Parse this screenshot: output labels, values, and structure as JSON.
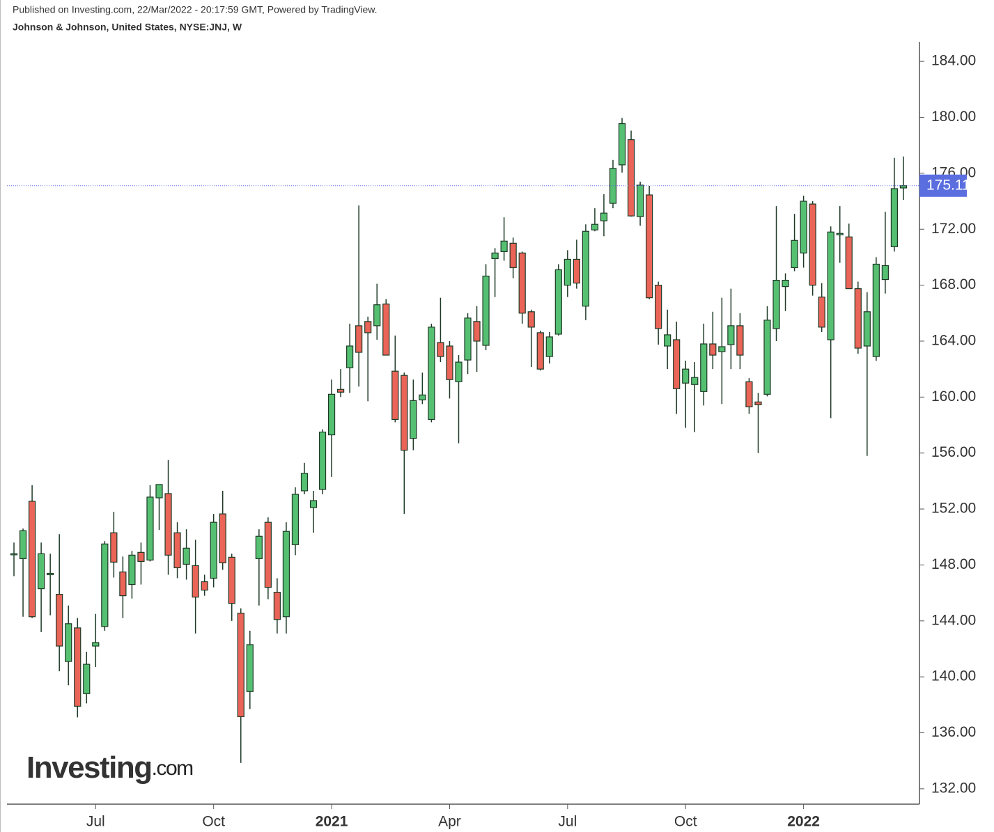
{
  "header": {
    "published": "Published on Investing.com, 22/Mar/2022 - 20:17:59 GMT, Powered by TradingView.",
    "symbol": "Johnson & Johnson, United States, NYSE:JNJ, W"
  },
  "logo": {
    "name": "Investing",
    "suffix": ".com"
  },
  "chart_data": {
    "type": "candlestick",
    "up_color": "#56c072",
    "down_color": "#ea6458",
    "edge_color": "#1d3a26",
    "open": [
      148.8,
      148.45,
      152.55,
      146.3,
      147.3,
      145.9,
      141.1,
      143.5,
      138.8,
      142.2,
      143.6,
      150.3,
      147.5,
      146.6,
      148.9,
      148.35,
      152.8,
      153.1,
      150.3,
      148.05,
      147.95,
      146.8,
      147.05,
      151.65,
      148.55,
      144.55,
      138.95,
      148.45,
      151.05,
      146.05,
      144.3,
      149.45,
      153.3,
      152.1,
      153.4,
      157.3,
      160.55,
      162.1,
      165.1,
      165.4,
      165.1,
      166.65,
      161.85,
      161.55,
      157.05,
      159.8,
      158.4,
      163.9,
      163.65,
      161.1,
      162.65,
      165.4,
      163.7,
      169.9,
      170.4,
      171.0,
      170.3,
      166.1,
      164.6,
      162.9,
      164.5,
      168.0,
      169.85,
      166.5,
      171.95,
      172.6,
      173.85,
      176.6,
      178.4,
      172.9,
      174.45,
      168.0,
      163.65,
      164.1,
      161.0,
      160.9,
      160.4,
      163.8,
      163.25,
      163.75,
      165.1,
      161.1,
      159.65,
      160.2,
      164.9,
      167.9,
      169.25,
      170.3,
      173.8,
      167.15,
      164.1,
      171.6,
      171.45,
      167.75,
      163.65,
      162.9,
      168.4,
      170.75,
      174.95
    ],
    "high": [
      149.6,
      150.6,
      153.7,
      149.6,
      148.8,
      150.2,
      145.1,
      144.2,
      141.8,
      144.5,
      149.7,
      151.8,
      148.6,
      149.0,
      149.6,
      153.7,
      153.75,
      155.5,
      151.05,
      150.55,
      149.8,
      147.3,
      151.65,
      153.3,
      148.8,
      144.9,
      143.3,
      150.55,
      151.4,
      147.05,
      151.05,
      153.55,
      155.3,
      153.3,
      157.7,
      161.25,
      162.0,
      165.25,
      173.7,
      165.75,
      168.1,
      167.0,
      164.4,
      161.75,
      161.25,
      161.75,
      165.25,
      167.1,
      164.0,
      163.0,
      166.0,
      166.5,
      169.5,
      170.65,
      172.85,
      171.4,
      170.4,
      166.25,
      164.75,
      164.65,
      169.5,
      170.5,
      171.25,
      172.35,
      173.5,
      174.5,
      176.95,
      179.95,
      179.05,
      175.4,
      175.1,
      168.25,
      166.25,
      165.4,
      162.6,
      162.5,
      165.25,
      166.1,
      167.1,
      167.75,
      166.0,
      161.35,
      160.3,
      166.5,
      173.65,
      168.85,
      173.1,
      174.4,
      174.0,
      168.15,
      172.2,
      173.65,
      172.4,
      168.25,
      167.5,
      170.0,
      173.25,
      177.1,
      177.2
    ],
    "low": [
      147.2,
      144.3,
      144.2,
      143.2,
      144.4,
      140.4,
      139.4,
      137.1,
      138.1,
      140.7,
      143.3,
      147.1,
      144.2,
      145.6,
      146.6,
      148.25,
      150.5,
      147.3,
      147.05,
      146.95,
      143.1,
      145.8,
      146.4,
      147.65,
      144.0,
      133.85,
      137.7,
      145.1,
      145.55,
      143.1,
      143.1,
      148.7,
      153.05,
      150.3,
      153.05,
      154.3,
      160.0,
      160.3,
      160.75,
      159.7,
      164.1,
      163.0,
      158.2,
      151.65,
      156.2,
      159.5,
      158.2,
      162.5,
      159.9,
      156.7,
      161.65,
      161.8,
      163.35,
      167.15,
      169.75,
      168.5,
      165.25,
      162.15,
      161.9,
      162.4,
      164.4,
      167.15,
      167.75,
      165.5,
      171.85,
      171.5,
      173.5,
      176.05,
      172.9,
      172.25,
      167.0,
      163.75,
      162.0,
      158.8,
      157.8,
      157.5,
      159.4,
      162.0,
      159.5,
      162.0,
      162.0,
      158.8,
      156.0,
      160.05,
      164.0,
      166.15,
      169.0,
      169.25,
      167.25,
      164.65,
      158.5,
      169.6,
      167.75,
      163.1,
      155.8,
      162.6,
      167.4,
      170.4,
      174.1
    ],
    "close": [
      148.8,
      150.45,
      144.3,
      148.8,
      147.4,
      142.2,
      143.8,
      137.9,
      140.9,
      142.45,
      149.5,
      148.2,
      145.8,
      148.7,
      148.25,
      152.85,
      153.75,
      148.7,
      147.8,
      149.2,
      145.7,
      146.2,
      151.05,
      148.15,
      145.25,
      137.15,
      142.3,
      150.05,
      146.4,
      144.1,
      150.4,
      153.05,
      154.55,
      152.6,
      157.5,
      160.2,
      160.35,
      163.65,
      163.2,
      164.6,
      166.6,
      163.0,
      158.4,
      156.2,
      159.75,
      160.15,
      165.0,
      162.9,
      161.25,
      162.5,
      165.65,
      164.0,
      168.65,
      170.3,
      171.15,
      169.25,
      166.0,
      165.0,
      162.0,
      164.3,
      169.1,
      169.85,
      168.15,
      171.85,
      172.35,
      173.15,
      176.35,
      179.55,
      172.95,
      175.15,
      167.1,
      164.9,
      164.45,
      160.6,
      162.0,
      161.4,
      163.8,
      163.0,
      163.6,
      165.1,
      163.0,
      159.3,
      159.45,
      165.5,
      168.35,
      168.35,
      171.2,
      174.0,
      168.0,
      165.0,
      171.8,
      171.7,
      167.75,
      163.5,
      166.1,
      169.5,
      169.4,
      174.9,
      175.11
    ],
    "last_price": 175.11,
    "last_color": "#5a6ee0",
    "ylim": [
      130.9,
      185.4
    ],
    "yticks": [
      {
        "value": 132,
        "label": "132.00"
      },
      {
        "value": 136,
        "label": "136.00"
      },
      {
        "value": 140,
        "label": "140.00"
      },
      {
        "value": 144,
        "label": "144.00"
      },
      {
        "value": 148,
        "label": "148.00"
      },
      {
        "value": 152,
        "label": "152.00"
      },
      {
        "value": 156,
        "label": "156.00"
      },
      {
        "value": 160,
        "label": "160.00"
      },
      {
        "value": 164,
        "label": "164.00"
      },
      {
        "value": 168,
        "label": "168.00"
      },
      {
        "value": 172,
        "label": "172.00"
      },
      {
        "value": 176,
        "label": "176.00"
      },
      {
        "value": 180,
        "label": "180.00"
      },
      {
        "value": 184,
        "label": "184.00"
      }
    ],
    "xticks": [
      {
        "value": 9,
        "label": "Jul"
      },
      {
        "value": 22,
        "label": "Oct"
      },
      {
        "value": 35,
        "label": "2021"
      },
      {
        "value": 48,
        "label": "Apr"
      },
      {
        "value": 61,
        "label": "Jul"
      },
      {
        "value": 74,
        "label": "Oct"
      },
      {
        "value": 87,
        "label": "2022"
      }
    ],
    "xlim": [
      -0.77,
      99.77
    ]
  }
}
